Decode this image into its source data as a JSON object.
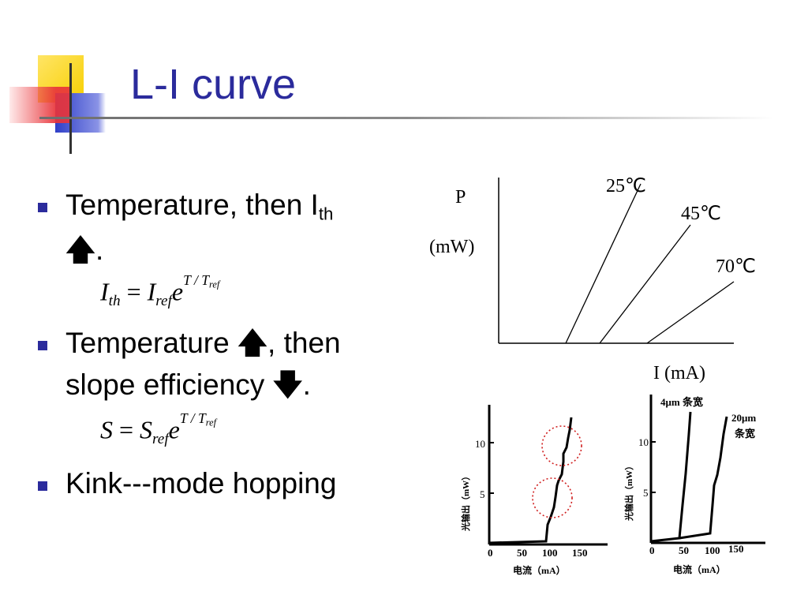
{
  "slide": {
    "title": "L-I curve"
  },
  "bullets": [
    {
      "text_before": "Temperature, then I",
      "sub": "th",
      "line2_arrow": "🡅",
      "line2_tail": "."
    },
    {
      "text_before": "Temperature ",
      "arrow": "🡅",
      "text_after": ", then",
      "line2": "slope efficiency ",
      "line2_arrow": "🡇",
      "line2_tail": "."
    },
    {
      "text": "Kink---mode hopping"
    }
  ],
  "formulas": {
    "ith": {
      "lhs": "I",
      "lhs_sub": "th",
      "eq": "=",
      "rhs": "I",
      "rhs_sub": "ref",
      "base": "e",
      "exp": "T / T",
      "exp_sub": "ref"
    },
    "s": {
      "lhs": "S",
      "eq": "=",
      "rhs": "S",
      "rhs_sub": "ref",
      "base": "e",
      "exp": "T / T",
      "exp_sub": "ref"
    }
  },
  "diagram": {
    "y_label": "P",
    "y_unit": "(mW)",
    "x_label": "I (mA)",
    "curves": [
      "25℃",
      "45℃",
      "70℃"
    ]
  },
  "plot_left": {
    "y_ticks": [
      "10",
      "5"
    ],
    "x_ticks": [
      "0",
      "50",
      "100",
      "150"
    ],
    "y_label": "光输出（mW）",
    "x_label": "电流（mA）"
  },
  "plot_right": {
    "y_ticks": [
      "10",
      "5"
    ],
    "x_ticks": [
      "0",
      "50",
      "100",
      "150"
    ],
    "y_label": "光输出（mW）",
    "x_label": "电流（mA）",
    "annot_4um": "4μm 条宽",
    "annot_20um_a": "20μm",
    "annot_20um_b": "条宽"
  },
  "colors": {
    "title": "#2b2b9c",
    "bullet": "#2b2b9c",
    "deco_yellow": "#f7cf00",
    "deco_red": "#e8343a",
    "deco_blue": "#2f3fc8",
    "kink_circle": "#d02020"
  }
}
